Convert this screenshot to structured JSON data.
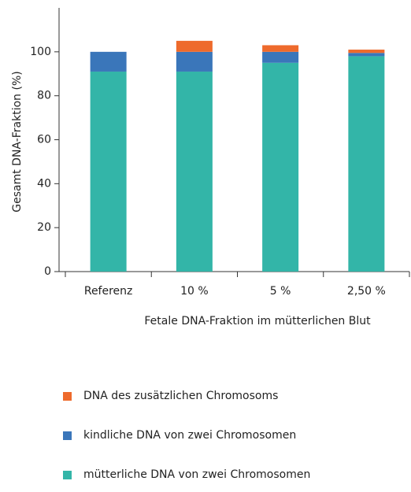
{
  "chart_data": {
    "type": "stacked_bar",
    "categories": [
      "Referenz",
      "10 %",
      "5 %",
      "2,50 %"
    ],
    "series": [
      {
        "name": "mütterliche DNA von zwei Chromosomen",
        "color": "#33b5a8",
        "values": [
          91,
          91,
          95,
          98
        ]
      },
      {
        "name": "kindliche DNA von zwei Chromosomen",
        "color": "#3a76ba",
        "values": [
          9,
          9,
          5,
          1.5
        ]
      },
      {
        "name": "DNA des zusätzlichen Chromosoms",
        "color": "#ee6a2c",
        "values": [
          0,
          5,
          3,
          1.5
        ]
      }
    ],
    "xlabel": "Fetale DNA-Fraktion im mütterlichen Blut",
    "ylabel": "Gesamt DNA-Fraktion (%)",
    "ylim": [
      0,
      120
    ],
    "yticks": [
      0,
      20,
      40,
      60,
      80,
      100
    ]
  }
}
